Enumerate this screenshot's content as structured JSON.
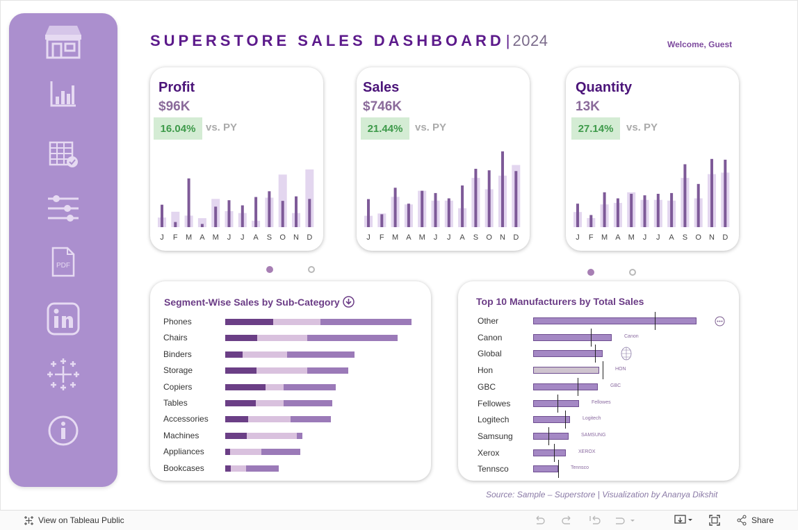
{
  "header": {
    "title": "SUPERSTORE SALES DASHBOARD",
    "separator": "|",
    "year": "2024",
    "welcome": "Welcome, Guest"
  },
  "sidebar": {
    "items": [
      {
        "icon": "store-icon"
      },
      {
        "icon": "bar-chart-icon"
      },
      {
        "icon": "table-check-icon"
      },
      {
        "icon": "filter-sliders-icon"
      },
      {
        "icon": "pdf-icon"
      },
      {
        "icon": "linkedin-icon"
      },
      {
        "icon": "tableau-icon"
      },
      {
        "icon": "info-icon"
      }
    ]
  },
  "colors": {
    "primary_bar": "#7e5a98",
    "py_bar": "#e3d6ef",
    "segment_consumer": "#6b3f86",
    "segment_corporate": "#d9c1de",
    "segment_home_office": "#9b7ab8",
    "positive": "#3e9a4a"
  },
  "kpis": [
    {
      "name": "Profit",
      "value": "$96K",
      "pct": "16.04%",
      "vs": "vs. PY"
    },
    {
      "name": "Sales",
      "value": "$746K",
      "pct": "21.44%",
      "vs": "vs. PY"
    },
    {
      "name": "Quantity",
      "value": "13K",
      "pct": "27.14%",
      "vs": "vs. PY"
    }
  ],
  "chart_data": [
    {
      "type": "bar",
      "kpi": "Profit",
      "categories": [
        "J",
        "F",
        "M",
        "A",
        "M",
        "J",
        "J",
        "A",
        "S",
        "O",
        "N",
        "D"
      ],
      "series": [
        {
          "values": [
            3.5,
            0.8,
            7.6,
            0.5,
            3.2,
            4.2,
            3.4,
            4.7,
            5.6,
            4.1,
            4.8,
            4.4
          ]
        },
        {
          "values": [
            1.5,
            2.4,
            1.8,
            1.4,
            4.4,
            2.5,
            2.2,
            1.0,
            4.6,
            8.2,
            2.2,
            9.0
          ]
        }
      ],
      "ylim": [
        0,
        13
      ]
    },
    {
      "type": "bar",
      "kpi": "Sales",
      "categories": [
        "J",
        "F",
        "M",
        "A",
        "M",
        "J",
        "J",
        "A",
        "S",
        "O",
        "N",
        "D"
      ],
      "series": [
        {
          "values": [
            37,
            17,
            52,
            31,
            48,
            45,
            38,
            55,
            77,
            75,
            100,
            74
          ]
        },
        {
          "values": [
            15,
            18,
            40,
            30,
            48,
            35,
            35,
            25,
            65,
            50,
            68,
            82
          ]
        }
      ],
      "ylim": [
        0,
        110
      ]
    },
    {
      "type": "bar",
      "kpi": "Quantity",
      "categories": [
        "J",
        "F",
        "M",
        "A",
        "M",
        "J",
        "J",
        "A",
        "S",
        "O",
        "N",
        "D"
      ],
      "series": [
        {
          "values": [
            31,
            16,
            46,
            38,
            44,
            42,
            44,
            45,
            83,
            57,
            90,
            89
          ]
        },
        {
          "values": [
            20,
            12,
            30,
            32,
            46,
            36,
            36,
            35,
            65,
            38,
            70,
            72
          ]
        }
      ],
      "ylim": [
        0,
        110
      ]
    },
    {
      "type": "bar",
      "title": "Segment-Wise Sales by Sub-Category",
      "orientation": "horizontal",
      "stacked": true,
      "categories": [
        "Phones",
        "Chairs",
        "Binders",
        "Storage",
        "Copiers",
        "Tables",
        "Accessories",
        "Machines",
        "Appliances",
        "Bookcases"
      ],
      "series": [
        {
          "values": [
            69,
            46,
            25,
            45,
            58,
            44,
            33,
            31,
            7,
            8
          ]
        },
        {
          "values": [
            68,
            72,
            64,
            73,
            26,
            40,
            61,
            72,
            45,
            22
          ]
        },
        {
          "values": [
            131,
            130,
            97,
            59,
            75,
            70,
            58,
            8,
            56,
            47
          ]
        }
      ]
    },
    {
      "type": "bar",
      "title": "Top 10 Manufacturers by Total Sales",
      "orientation": "horizontal",
      "categories": [
        "Other",
        "Canon",
        "Global",
        "Hon",
        "GBC",
        "Fellowes",
        "Logitech",
        "Samsung",
        "Xerox",
        "Tennsco"
      ],
      "values": [
        235,
        113,
        100,
        95,
        93,
        66,
        53,
        51,
        47,
        36
      ],
      "reference": [
        175,
        83,
        89,
        100,
        64,
        35,
        46,
        22,
        30,
        36
      ]
    }
  ],
  "segment_chart": {
    "title": "Segment-Wise Sales by Sub-Category",
    "download_icon": "download-circle-icon"
  },
  "manufacturer_chart": {
    "title": "Top 10 Manufacturers by Total Sales",
    "logos": [
      "",
      "Canon",
      "",
      "HON",
      "GBC",
      "Fellowes",
      "Logitech",
      "SAMSUNG",
      "XEROX",
      "Tennsco"
    ],
    "menu_icon": "more-icon"
  },
  "source": "Source: Sample – Superstore | Visualization by Ananya Dikshit",
  "toolbar": {
    "view_on": "View on Tableau Public",
    "share": "Share"
  }
}
